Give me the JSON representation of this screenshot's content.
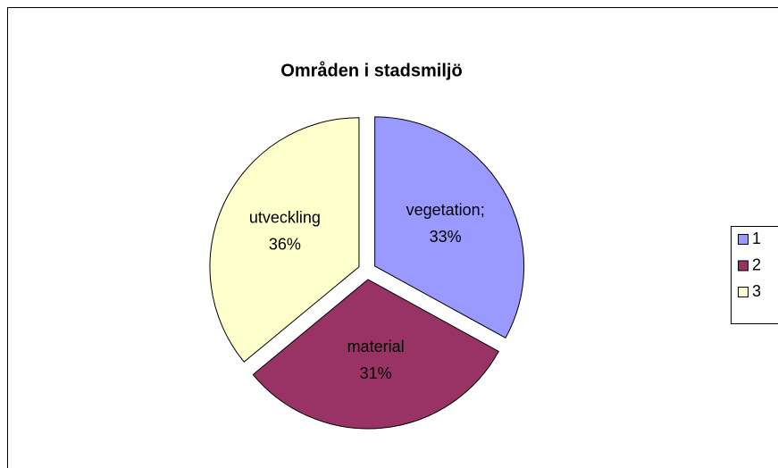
{
  "chart_data": {
    "type": "pie",
    "title": "Områden i stadsmiljö",
    "categories": [
      "vegetation;",
      "material",
      "utveckling"
    ],
    "values": [
      33,
      31,
      36
    ],
    "value_labels": [
      "33%",
      "31%",
      "36%"
    ],
    "colors": [
      "#9999ff",
      "#993366",
      "#ffffcc"
    ],
    "legend": [
      "1",
      "2",
      "3"
    ],
    "legend_position": "right"
  }
}
